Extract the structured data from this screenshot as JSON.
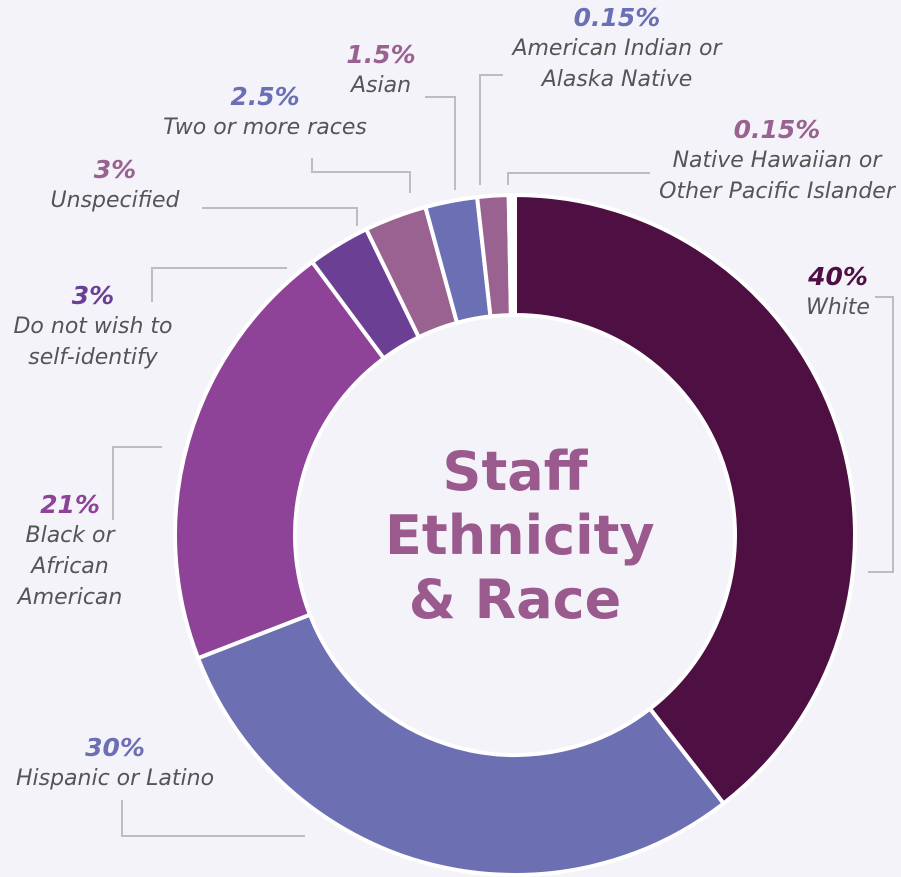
{
  "chart_data": {
    "type": "donut",
    "title": "Staff Ethnicity & Race",
    "categories": [
      "White",
      "Hispanic or Latino",
      "Black or African American",
      "Do not wish to self-identify",
      "Unspecified",
      "Two or more races",
      "Asian",
      "American Indian or Alaska Native",
      "Native Hawaiian or Other Pacific Islander"
    ],
    "values": [
      40,
      30,
      21,
      3,
      3,
      2.5,
      1.5,
      0.15,
      0.15
    ],
    "value_labels": [
      "40%",
      "30%",
      "21%",
      "3%",
      "3%",
      "2.5%",
      "1.5%",
      "0.15%",
      "0.15%"
    ],
    "colors": [
      "#4e0f42",
      "#6d6fb3",
      "#8e4398",
      "#6b3f94",
      "#9a6290",
      "#6b70b5",
      "#9a6290",
      "#6b70b5",
      "#9a6290"
    ]
  }
}
